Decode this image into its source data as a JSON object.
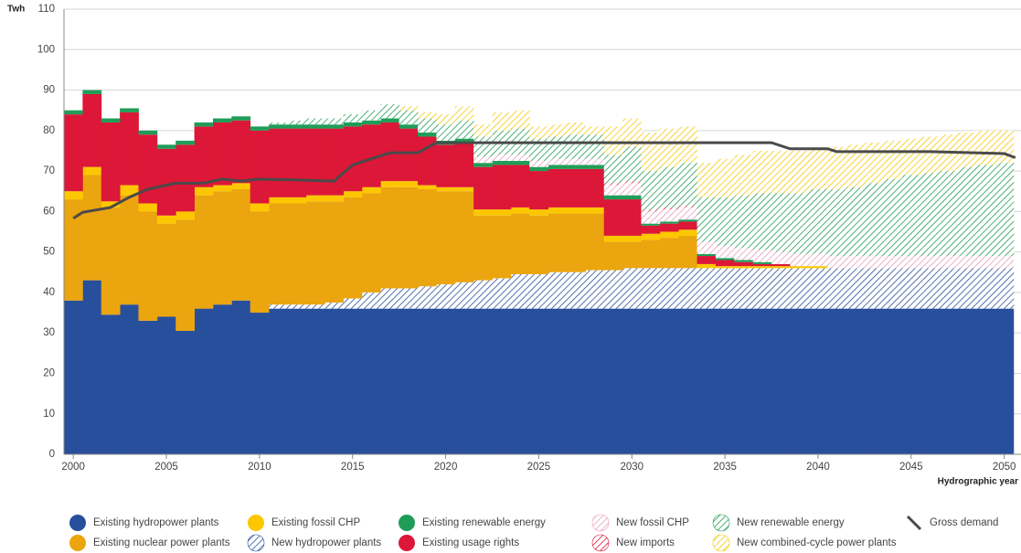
{
  "chart_data": {
    "type": "stacked-bar-line",
    "y_label": "Twh",
    "x_label": "Hydrographic year",
    "xlim": [
      1999.5,
      2050.9
    ],
    "ylim": [
      0,
      110
    ],
    "xticks": [
      2000,
      2005,
      2010,
      2015,
      2020,
      2025,
      2030,
      2035,
      2040,
      2045,
      2050
    ],
    "yticks": [
      0,
      10,
      20,
      30,
      40,
      50,
      60,
      70,
      80,
      90,
      100,
      110
    ],
    "grid": true,
    "x": [
      2000,
      2001,
      2002,
      2003,
      2004,
      2005,
      2006,
      2007,
      2008,
      2009,
      2010,
      2011,
      2012,
      2013,
      2014,
      2015,
      2016,
      2017,
      2018,
      2019,
      2020,
      2021,
      2022,
      2023,
      2024,
      2025,
      2026,
      2027,
      2028,
      2029,
      2030,
      2031,
      2032,
      2033,
      2034,
      2035,
      2036,
      2037,
      2038,
      2039,
      2040,
      2041,
      2042,
      2043,
      2044,
      2045,
      2046,
      2047,
      2048,
      2049,
      2050
    ],
    "series": [
      {
        "name": "Existing hydropower plants",
        "color": "#284f9b",
        "hatched": false,
        "values": [
          38,
          43,
          34.5,
          37,
          33,
          34,
          30.5,
          36,
          37,
          38,
          35,
          36,
          36,
          36,
          36,
          36,
          36,
          36,
          36,
          36,
          36,
          36,
          36,
          36,
          36,
          36,
          36,
          36,
          36,
          36,
          36,
          36,
          36,
          36,
          36,
          36,
          36,
          36,
          36,
          36,
          36,
          36,
          36,
          36,
          36,
          36,
          36,
          36,
          36,
          36,
          36
        ]
      },
      {
        "name": "New hydropower plants",
        "color": "#284f9b",
        "hatched": true,
        "values": [
          0,
          0,
          0,
          0,
          0,
          0,
          0,
          0,
          0,
          0,
          0,
          1,
          1,
          1,
          1.5,
          2.5,
          4,
          5,
          5,
          5.5,
          6,
          6.5,
          7,
          7.5,
          8.5,
          8.5,
          9,
          9,
          9.5,
          9.5,
          10,
          10,
          10,
          10,
          10,
          10,
          10,
          10,
          10,
          10,
          10,
          10,
          10,
          10,
          10,
          10,
          10,
          10,
          10,
          10,
          10
        ]
      },
      {
        "name": "Existing nuclear power plants",
        "color": "#eba50e",
        "hatched": false,
        "values": [
          25,
          26,
          26.5,
          27,
          27,
          23,
          27.5,
          28,
          28,
          27.5,
          25,
          25,
          25,
          25.5,
          25,
          25,
          24.5,
          25,
          25,
          24,
          23,
          22.5,
          16,
          15.5,
          15,
          14.5,
          14.5,
          14.5,
          14,
          7,
          6.5,
          7,
          7.5,
          8,
          0,
          0,
          0,
          0,
          0,
          0,
          0,
          0,
          0,
          0,
          0,
          0,
          0,
          0,
          0,
          0,
          0
        ]
      },
      {
        "name": "Existing fossil CHP",
        "color": "#fdc700",
        "hatched": false,
        "values": [
          2,
          2,
          1.5,
          2.5,
          2,
          2,
          2,
          2,
          1.5,
          1.5,
          2,
          1.5,
          1.5,
          1.5,
          1.5,
          1.5,
          1.5,
          1.5,
          1.5,
          1,
          1,
          1,
          1.5,
          1.5,
          1.5,
          1.5,
          1.5,
          1.5,
          1.5,
          1.5,
          1.5,
          1.5,
          1.5,
          1.5,
          1,
          0.5,
          0.5,
          0.5,
          0.5,
          0.5,
          0.5,
          0,
          0,
          0,
          0,
          0,
          0,
          0,
          0,
          0,
          0
        ]
      },
      {
        "name": "Existing usage rights",
        "color": "#dc1737",
        "hatched": false,
        "values": [
          19,
          18,
          19.5,
          18,
          17,
          16.5,
          16.5,
          15,
          15.5,
          15.5,
          18,
          17,
          17,
          16.5,
          16.5,
          16,
          15.5,
          14.5,
          13,
          12,
          10.5,
          11,
          10.5,
          11,
          10.5,
          9.5,
          9.5,
          9.5,
          9.5,
          9,
          9,
          2,
          2,
          2,
          2,
          1.5,
          1,
          0.5,
          0.5,
          0,
          0,
          0,
          0,
          0,
          0,
          0,
          0,
          0,
          0,
          0,
          0
        ]
      },
      {
        "name": "Existing renewable energy",
        "color": "#1f9d58",
        "hatched": false,
        "values": [
          1,
          1,
          1,
          1,
          1,
          1,
          1,
          1,
          1,
          1,
          1,
          1,
          1,
          1,
          1,
          1,
          1,
          1,
          1,
          1,
          1,
          1,
          1,
          1,
          1,
          1,
          1,
          1,
          1,
          1,
          1,
          0.5,
          0.5,
          0.5,
          0.5,
          0.5,
          0.5,
          0.5,
          0,
          0,
          0,
          0,
          0,
          0,
          0,
          0,
          0,
          0,
          0,
          0,
          0
        ]
      },
      {
        "name": "New fossil CHP",
        "color": "#e79bbd",
        "hatched": true,
        "values": [
          0,
          0,
          0,
          0,
          0,
          0,
          0,
          0,
          0,
          0,
          0,
          0,
          0,
          0,
          0,
          0,
          0,
          0,
          0,
          0,
          0,
          0,
          1.5,
          1.5,
          1.5,
          1.5,
          1.5,
          1.5,
          1.5,
          2.5,
          3,
          3,
          3,
          3,
          3,
          3,
          3,
          3,
          3,
          3,
          3,
          3,
          3,
          3,
          3,
          3,
          3,
          3,
          3,
          3,
          3
        ]
      },
      {
        "name": "New imports",
        "color": "#dc1737",
        "hatched": true,
        "values": [
          0,
          0,
          0,
          0,
          0,
          0,
          0,
          0,
          0,
          0,
          0,
          0,
          0,
          0,
          0,
          0,
          0,
          0,
          0,
          0,
          0,
          0,
          0,
          0,
          0,
          0,
          0,
          0,
          0,
          0.5,
          0.5,
          0.5,
          0.5,
          0.5,
          0,
          0,
          0,
          0,
          0,
          0,
          0,
          0,
          0,
          0,
          0,
          0,
          0,
          0,
          0,
          0,
          0
        ]
      },
      {
        "name": "New renewable energy",
        "color": "#1f9d58",
        "hatched": true,
        "values": [
          0,
          0,
          0,
          0,
          0,
          0,
          0,
          0,
          0,
          0,
          0,
          0.5,
          1,
          1.5,
          1.5,
          2,
          2.5,
          3.5,
          3.5,
          3.5,
          4,
          4.5,
          5,
          6,
          6.5,
          5.5,
          5.5,
          6,
          6,
          7,
          8.5,
          9.5,
          10,
          10.5,
          11,
          12,
          13,
          14,
          14.5,
          15,
          16,
          16.5,
          17,
          18,
          19,
          20,
          20.5,
          21,
          22,
          22.5,
          23
        ]
      },
      {
        "name": "New combined-cycle power plants",
        "color": "#f5c800",
        "hatched": true,
        "values": [
          0,
          0,
          0,
          0,
          0,
          0,
          0,
          0,
          0,
          0,
          0,
          0,
          0,
          0,
          0,
          0,
          0,
          0,
          1,
          1.5,
          2.5,
          3.5,
          3,
          4.5,
          4.5,
          3,
          3,
          3,
          2,
          7,
          7,
          9.5,
          9.5,
          9,
          8.5,
          9.5,
          10,
          10.5,
          10.5,
          10.5,
          10,
          10.5,
          10.5,
          10,
          9.5,
          9,
          9,
          9,
          8.5,
          8.5,
          8
        ]
      },
      {
        "name": "Gross demand",
        "color": "#4a4a4a",
        "type": "line",
        "x": [
          2000,
          2000.5,
          2002,
          2003,
          2004,
          2005.5,
          2007,
          2008,
          2009,
          2010,
          2012,
          2014,
          2015,
          2016,
          2017,
          2018.5,
          2019.5,
          2021,
          2037.5,
          2038.5,
          2040.5,
          2041,
          2046,
          2050,
          2050.6
        ],
        "values": [
          58.3,
          59.8,
          61,
          63.5,
          65.5,
          67,
          67,
          68,
          67.5,
          68,
          67.8,
          67.5,
          71.5,
          73,
          74.5,
          74.5,
          77,
          77,
          77,
          75.5,
          75.5,
          74.8,
          74.8,
          74.3,
          73.3
        ]
      }
    ]
  }
}
